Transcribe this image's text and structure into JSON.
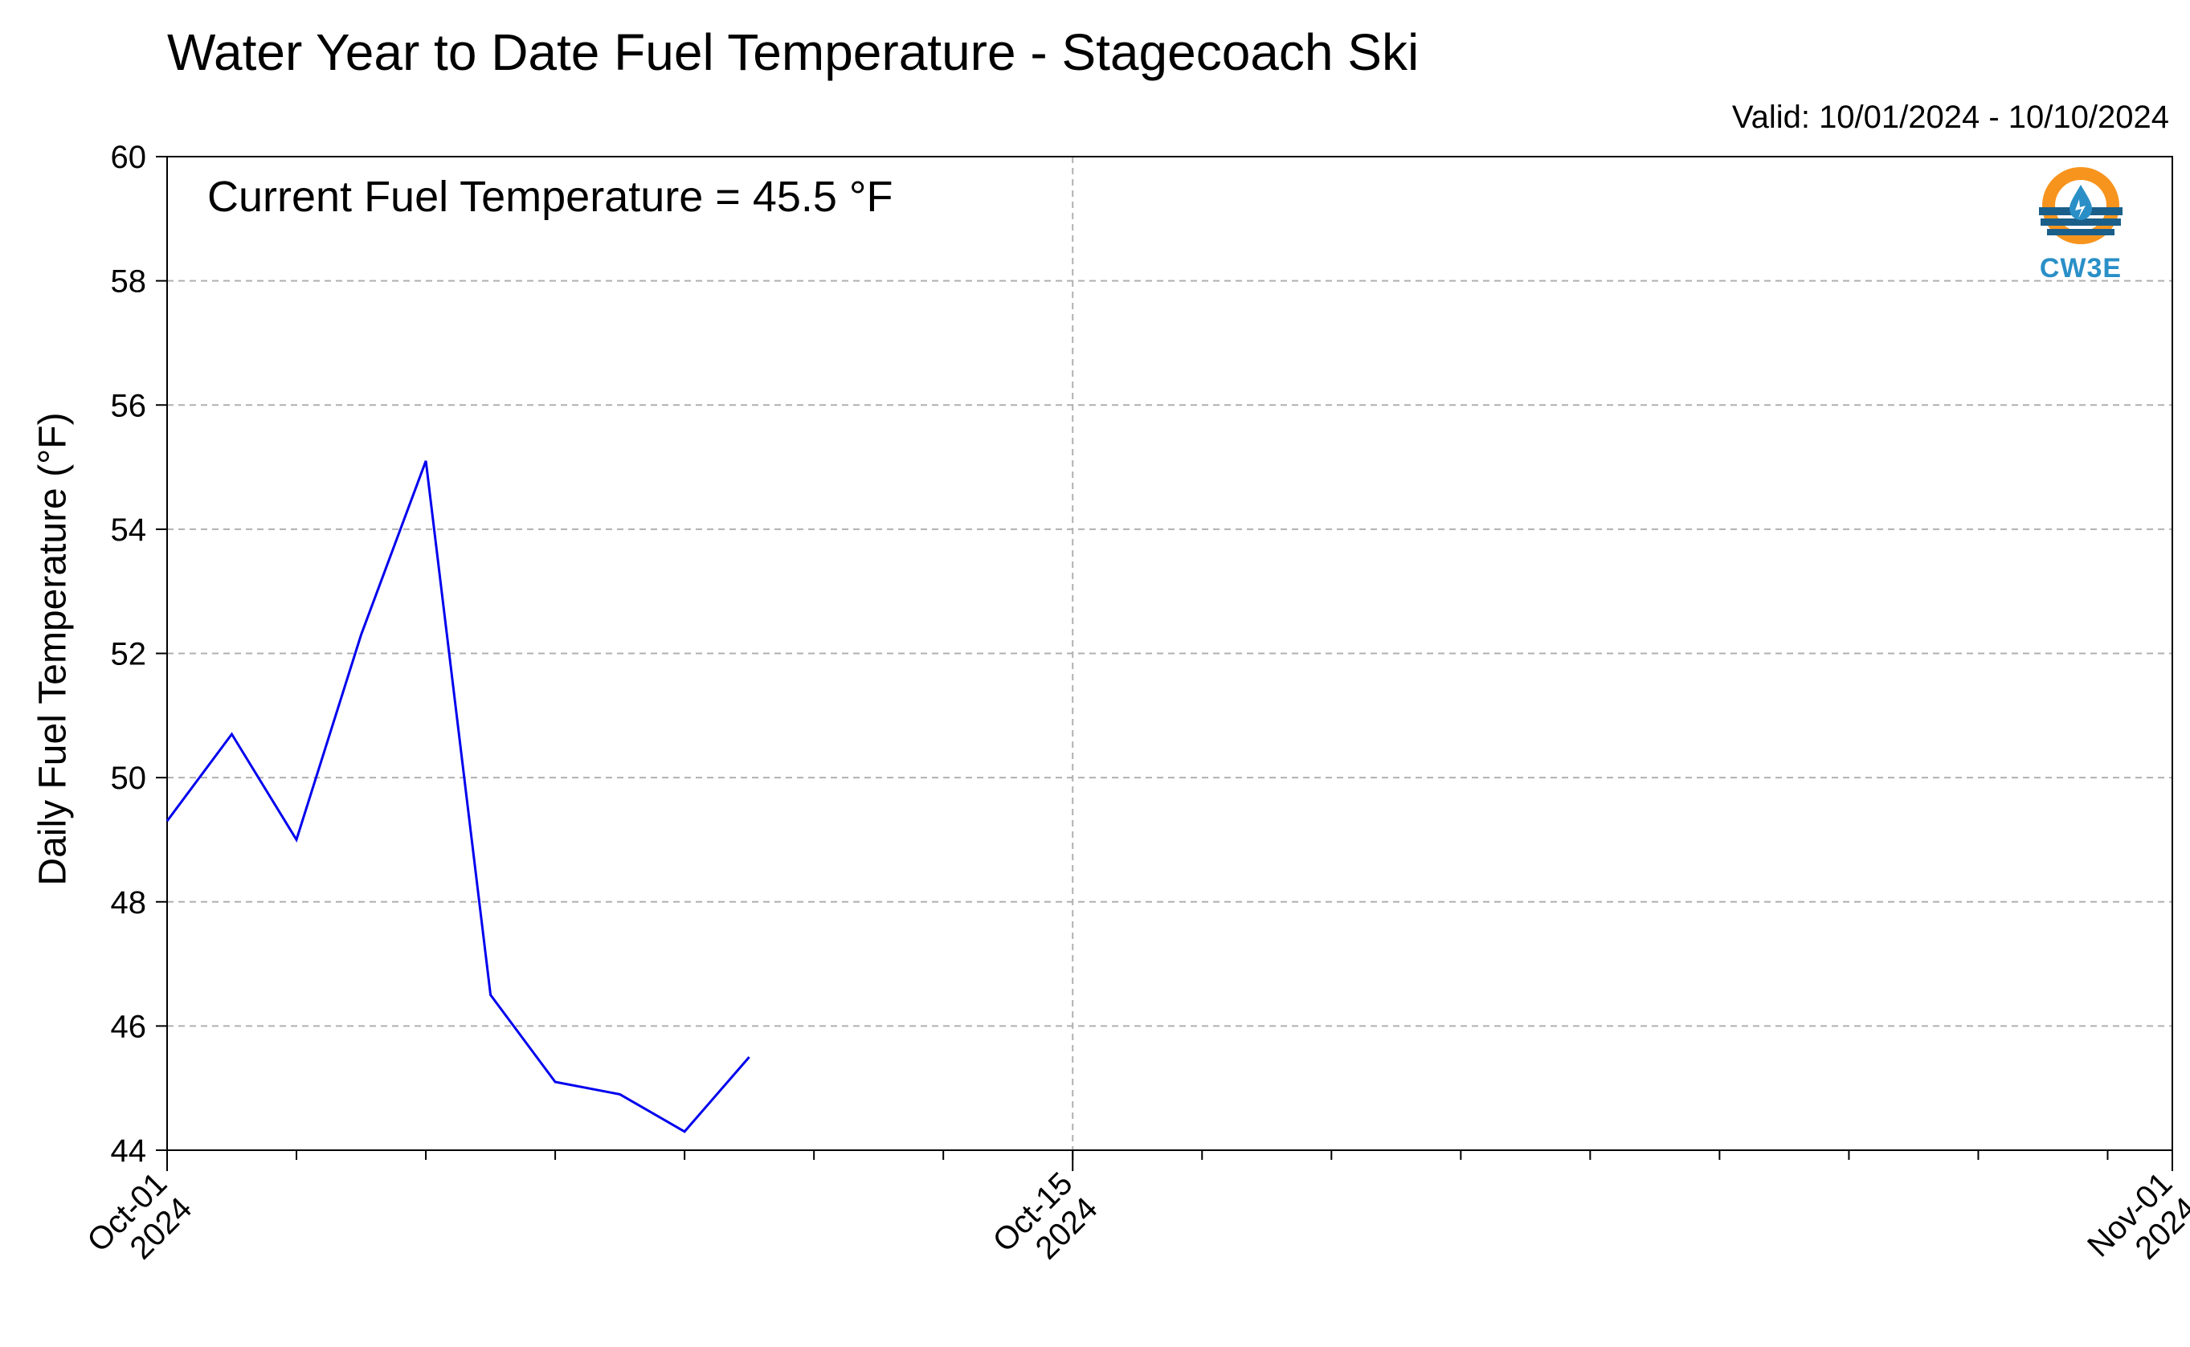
{
  "header": {
    "title": "Water Year to Date Fuel Temperature - Stagecoach Ski",
    "valid": "Valid: 10/01/2024 - 10/10/2024"
  },
  "annotation": "Current Fuel Temperature = 45.5 °F",
  "logo": {
    "text": "CW3E",
    "colors": [
      "#f7941d",
      "#2a8fc7",
      "#1a5f8a"
    ]
  },
  "chart_data": {
    "type": "line",
    "title": "Water Year to Date Fuel Temperature - Stagecoach Ski",
    "xlabel": "",
    "ylabel": "Daily Fuel Temperature (°F)",
    "xlim": [
      "2024-10-01",
      "2024-11-01"
    ],
    "ylim": [
      44,
      60
    ],
    "grid": true,
    "yticks": [
      44,
      46,
      48,
      50,
      52,
      54,
      56,
      58,
      60
    ],
    "xticks": [
      {
        "date": "2024-10-01",
        "label": [
          "Oct-01",
          "2024"
        ]
      },
      {
        "date": "2024-10-15",
        "label": [
          "Oct-15",
          "2024"
        ]
      },
      {
        "date": "2024-11-01",
        "label": [
          "Nov-01",
          "2024"
        ]
      }
    ],
    "line_color": "#0000ee",
    "series": [
      {
        "x": [
          "2024-10-01",
          "2024-10-02",
          "2024-10-03",
          "2024-10-04",
          "2024-10-05",
          "2024-10-06",
          "2024-10-07",
          "2024-10-08",
          "2024-10-09",
          "2024-10-10"
        ],
        "values": [
          49.3,
          50.7,
          49.0,
          52.3,
          55.1,
          46.5,
          45.1,
          44.9,
          44.3,
          45.5
        ]
      }
    ]
  }
}
